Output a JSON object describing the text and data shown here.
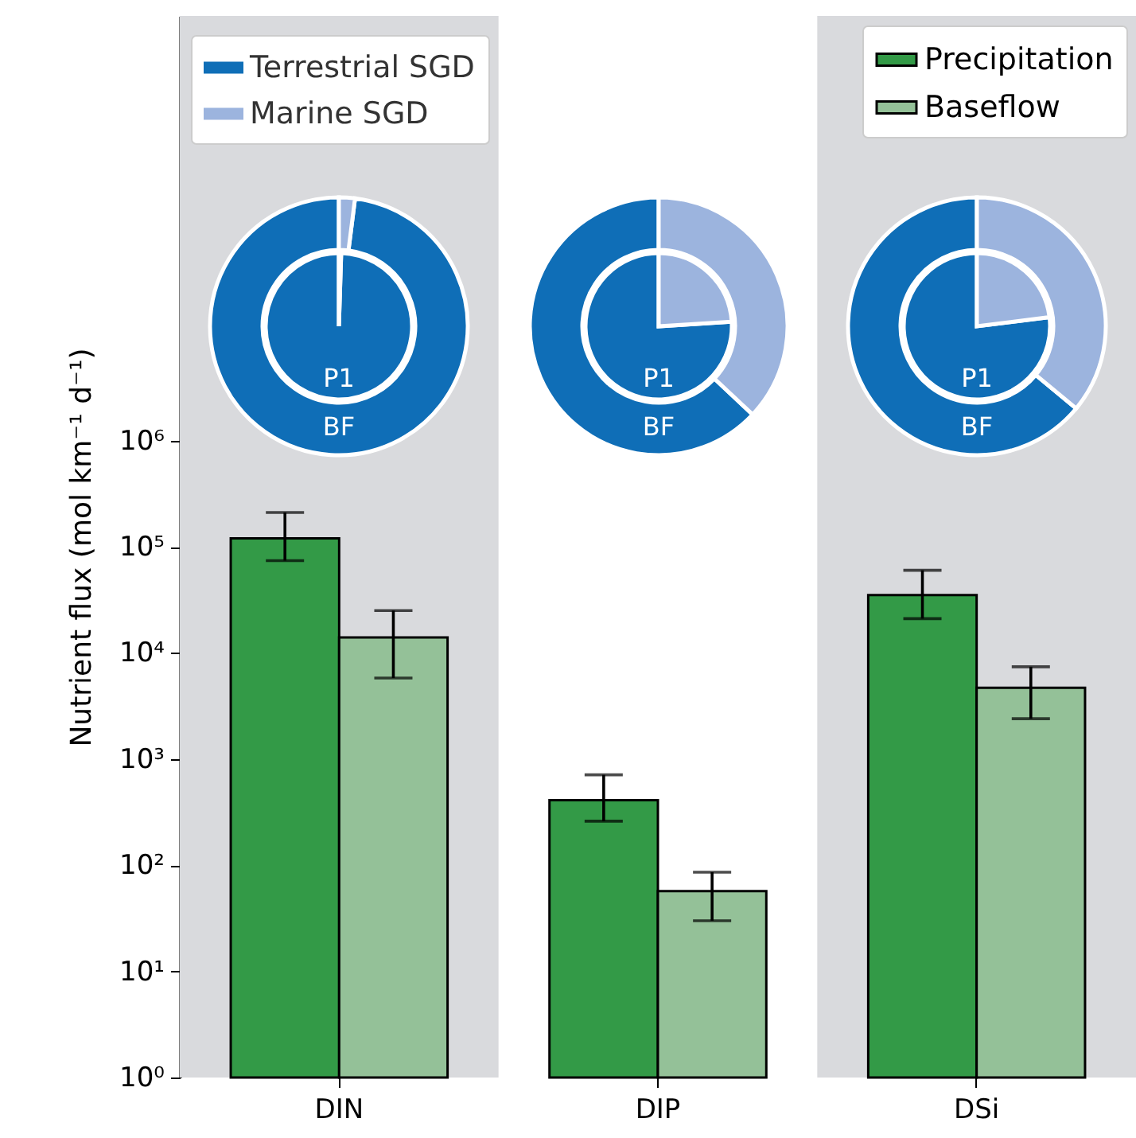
{
  "chart_data": [
    {
      "type": "bar",
      "ylabel": "Nutrient flux (mol km⁻¹ d⁻¹)",
      "categories": [
        "DIN",
        "DIP",
        "DSi"
      ],
      "log": true,
      "ylim": [
        1,
        10000000000
      ],
      "yticks": [
        {
          "value": 1,
          "label": "10⁰"
        },
        {
          "value": 10,
          "label": "10¹"
        },
        {
          "value": 100,
          "label": "10²"
        },
        {
          "value": 1000,
          "label": "10³"
        },
        {
          "value": 10000,
          "label": "10⁴"
        },
        {
          "value": 100000,
          "label": "10⁵"
        },
        {
          "value": 1000000,
          "label": "10⁶"
        }
      ],
      "series": [
        {
          "name": "Precipitation",
          "color": "#339a47",
          "values": [
            120000,
            410,
            35000
          ],
          "errors": [
            [
              74000,
              210000
            ],
            [
              260,
              710
            ],
            [
              21000,
              60000
            ]
          ]
        },
        {
          "name": "Baseflow",
          "color": "#94c198",
          "values": [
            14000,
            57,
            4700
          ],
          "errors": [
            [
              5800,
              25000
            ],
            [
              30,
              86
            ],
            [
              2400,
              7400
            ]
          ]
        }
      ],
      "bands": [
        {
          "axis": "x",
          "from": "DIN",
          "to": "DIN",
          "color": "#d9dadd"
        },
        {
          "axis": "x",
          "from": "DSi",
          "to": "DSi",
          "color": "#d9dadd"
        }
      ],
      "legend": "top right",
      "grid": false
    },
    {
      "type": "donut",
      "categories": [
        "Terrestrial SGD",
        "Marine SGD"
      ],
      "legend": "top left",
      "series": [
        {
          "name": "P1",
          "values": [
            99.5,
            0.5
          ]
        },
        {
          "name": "BF",
          "values": [
            98,
            2
          ]
        }
      ],
      "colors": [
        "#0f6eb7",
        "#9cb4de"
      ]
    },
    {
      "type": "donut",
      "series": [
        {
          "name": "P1",
          "values": [
            76,
            24
          ]
        },
        {
          "name": "BF",
          "values": [
            63,
            37
          ]
        }
      ],
      "colors": [
        "#0f6eb7",
        "#9cb4de"
      ]
    },
    {
      "type": "donut",
      "series": [
        {
          "name": "P1",
          "values": [
            77,
            23
          ]
        },
        {
          "name": "BF",
          "values": [
            64,
            36
          ]
        }
      ],
      "colors": [
        "#0f6eb7",
        "#9cb4de"
      ]
    }
  ]
}
